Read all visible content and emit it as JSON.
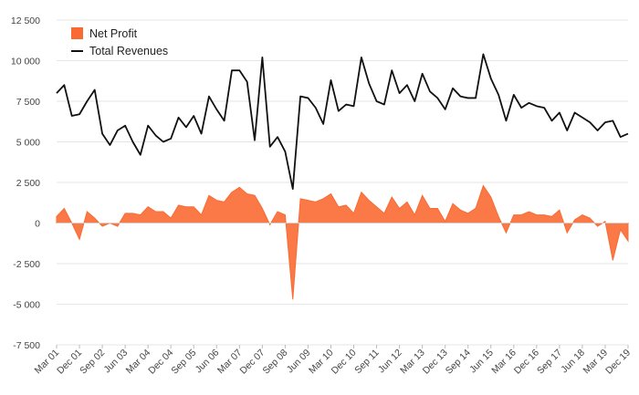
{
  "chart_data": {
    "type": "line",
    "title": "",
    "xlabel": "",
    "ylabel": "",
    "ylim": [
      -7500,
      12500
    ],
    "y_ticks": [
      12500,
      10000,
      7500,
      5000,
      2500,
      0,
      -2500,
      -5000,
      -7500
    ],
    "y_tick_labels": [
      "12 500",
      "10 000",
      "7 500",
      "5 000",
      "2 500",
      "0",
      "-2 500",
      "-5 000",
      "-7 500"
    ],
    "x_tick_labels": [
      "Mar 01",
      "Dec 01",
      "Sep 02",
      "Jun 03",
      "Mar 04",
      "Dec 04",
      "Sep 05",
      "Jun 06",
      "Mar 07",
      "Dec 07",
      "Sep 08",
      "Jun 09",
      "Mar 10",
      "Dec 10",
      "Sep 11",
      "Jun 12",
      "Mar 13",
      "Dec 13",
      "Sep 14",
      "Jun 15",
      "Mar 16",
      "Dec 16",
      "Sep 17",
      "Jun 18",
      "Mar 19",
      "Dec 19"
    ],
    "x_frequency": "quarterly",
    "grid": true,
    "legend_position": "top-left",
    "series": [
      {
        "name": "Net Profit",
        "kind": "area",
        "color": "#f96a33",
        "values": [
          400,
          900,
          0,
          -1000,
          700,
          300,
          -200,
          0,
          -200,
          600,
          600,
          500,
          1000,
          700,
          700,
          300,
          1100,
          1000,
          1000,
          500,
          1700,
          1400,
          1300,
          1900,
          2200,
          1800,
          1700,
          900,
          -100,
          700,
          500,
          -4700,
          1500,
          1400,
          1300,
          1500,
          1800,
          1000,
          1100,
          600,
          1900,
          1400,
          1000,
          600,
          1600,
          900,
          1300,
          500,
          1700,
          900,
          900,
          100,
          1200,
          800,
          600,
          900,
          2300,
          1600,
          400,
          -600,
          500,
          500,
          700,
          500,
          500,
          400,
          800,
          -600,
          200,
          500,
          300,
          -200,
          100,
          -2300,
          -400,
          -1100
        ]
      },
      {
        "name": "Total Revenues",
        "kind": "line",
        "color": "#111111",
        "values": [
          8000,
          8500,
          6600,
          6700,
          7500,
          8200,
          5500,
          4800,
          5700,
          6000,
          5000,
          4200,
          6000,
          5400,
          5000,
          5200,
          6500,
          5900,
          6600,
          5500,
          7800,
          7000,
          6300,
          9400,
          9400,
          8700,
          5100,
          10200,
          4700,
          5300,
          4400,
          2100,
          7800,
          7700,
          7100,
          6100,
          8800,
          6900,
          7300,
          7200,
          10200,
          8600,
          7500,
          7300,
          9400,
          8000,
          8500,
          7500,
          9200,
          8100,
          7700,
          7000,
          8300,
          7800,
          7700,
          7700,
          10400,
          8900,
          7900,
          6300,
          7900,
          7100,
          7400,
          7200,
          7100,
          6300,
          6800,
          5700,
          6800,
          6500,
          6200,
          5700,
          6200,
          6300,
          5300,
          5500
        ]
      }
    ]
  }
}
